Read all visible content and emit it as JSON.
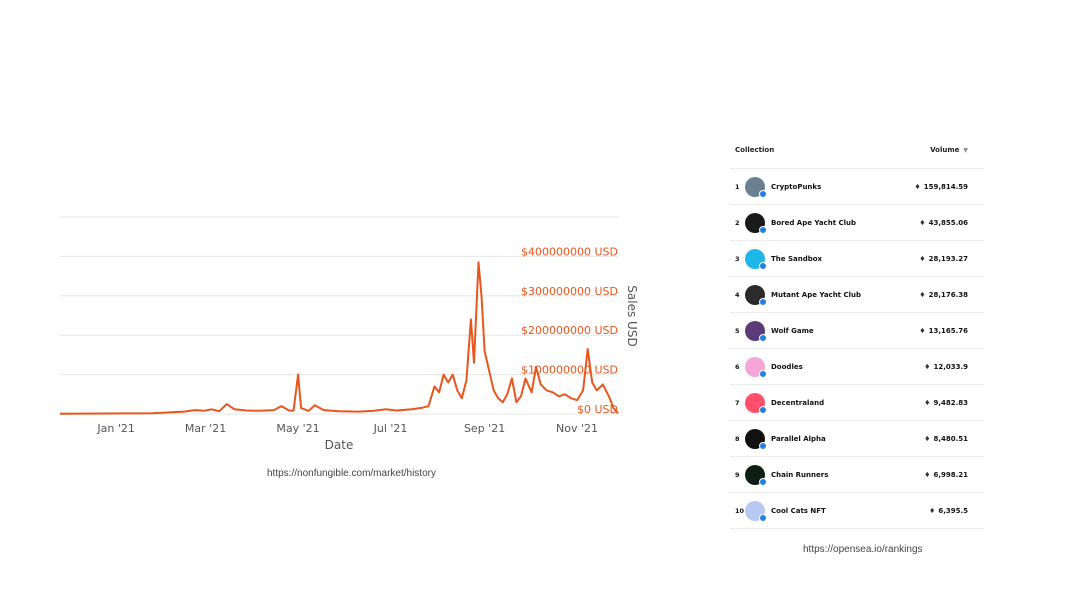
{
  "chart_data": {
    "type": "line",
    "title": "",
    "xlabel": "Date",
    "ylabel": "Sales USD",
    "x_tick_labels": [
      "Jan '21",
      "Mar '21",
      "May '21",
      "Jul '21",
      "Sep '21",
      "Nov '21"
    ],
    "x_tick_dates": [
      "2021-01-01",
      "2021-03-01",
      "2021-05-01",
      "2021-07-01",
      "2021-09-01",
      "2021-11-01"
    ],
    "y_tick_values": [
      0,
      100000000,
      200000000,
      300000000,
      400000000
    ],
    "y_tick_labels": [
      "$0 USD",
      "$100000000 USD",
      "$200000000 USD",
      "$300000000 USD",
      "$400000000 USD"
    ],
    "xlim": [
      "2020-11-25",
      "2021-11-28"
    ],
    "ylim": [
      0,
      500000000
    ],
    "grid": true,
    "line_color": "#e8561e",
    "series": [
      {
        "points": [
          [
            "2020-11-25",
            800000
          ],
          [
            "2020-12-10",
            1000000
          ],
          [
            "2020-12-25",
            1200000
          ],
          [
            "2021-01-10",
            1500000
          ],
          [
            "2021-01-25",
            2000000
          ],
          [
            "2021-02-05",
            4000000
          ],
          [
            "2021-02-15",
            6000000
          ],
          [
            "2021-02-22",
            10000000
          ],
          [
            "2021-02-28",
            8000000
          ],
          [
            "2021-03-05",
            12000000
          ],
          [
            "2021-03-10",
            7000000
          ],
          [
            "2021-03-15",
            25000000
          ],
          [
            "2021-03-20",
            12000000
          ],
          [
            "2021-03-28",
            9000000
          ],
          [
            "2021-04-05",
            8000000
          ],
          [
            "2021-04-15",
            10000000
          ],
          [
            "2021-04-20",
            20000000
          ],
          [
            "2021-04-25",
            9000000
          ],
          [
            "2021-04-28",
            8000000
          ],
          [
            "2021-05-01",
            100000000
          ],
          [
            "2021-05-03",
            15000000
          ],
          [
            "2021-05-08",
            8000000
          ],
          [
            "2021-05-12",
            22000000
          ],
          [
            "2021-05-18",
            10000000
          ],
          [
            "2021-05-28",
            7000000
          ],
          [
            "2021-06-10",
            6000000
          ],
          [
            "2021-06-20",
            8000000
          ],
          [
            "2021-06-28",
            12000000
          ],
          [
            "2021-07-05",
            9000000
          ],
          [
            "2021-07-15",
            12000000
          ],
          [
            "2021-07-22",
            16000000
          ],
          [
            "2021-07-26",
            20000000
          ],
          [
            "2021-07-30",
            70000000
          ],
          [
            "2021-08-02",
            55000000
          ],
          [
            "2021-08-05",
            100000000
          ],
          [
            "2021-08-08",
            80000000
          ],
          [
            "2021-08-11",
            100000000
          ],
          [
            "2021-08-14",
            60000000
          ],
          [
            "2021-08-17",
            40000000
          ],
          [
            "2021-08-20",
            85000000
          ],
          [
            "2021-08-23",
            240000000
          ],
          [
            "2021-08-25",
            130000000
          ],
          [
            "2021-08-28",
            385000000
          ],
          [
            "2021-08-30",
            300000000
          ],
          [
            "2021-09-01",
            160000000
          ],
          [
            "2021-09-04",
            110000000
          ],
          [
            "2021-09-07",
            60000000
          ],
          [
            "2021-09-10",
            40000000
          ],
          [
            "2021-09-13",
            30000000
          ],
          [
            "2021-09-16",
            50000000
          ],
          [
            "2021-09-19",
            90000000
          ],
          [
            "2021-09-22",
            30000000
          ],
          [
            "2021-09-25",
            45000000
          ],
          [
            "2021-09-28",
            90000000
          ],
          [
            "2021-10-02",
            55000000
          ],
          [
            "2021-10-05",
            120000000
          ],
          [
            "2021-10-08",
            75000000
          ],
          [
            "2021-10-12",
            60000000
          ],
          [
            "2021-10-16",
            55000000
          ],
          [
            "2021-10-20",
            45000000
          ],
          [
            "2021-10-24",
            50000000
          ],
          [
            "2021-10-28",
            40000000
          ],
          [
            "2021-11-01",
            35000000
          ],
          [
            "2021-11-05",
            60000000
          ],
          [
            "2021-11-08",
            165000000
          ],
          [
            "2021-11-11",
            80000000
          ],
          [
            "2021-11-14",
            60000000
          ],
          [
            "2021-11-18",
            75000000
          ],
          [
            "2021-11-22",
            45000000
          ],
          [
            "2021-11-25",
            15000000
          ],
          [
            "2021-11-28",
            2000000
          ]
        ]
      }
    ]
  },
  "sources": {
    "chart_source": "https://nonfungible.com/market/history",
    "table_source": "https://opensea.io/rankings"
  },
  "rankings": {
    "header": {
      "collection": "Collection",
      "volume": "Volume"
    },
    "items": [
      {
        "rank": "1",
        "name": "CryptoPunks",
        "volume": "159,814.59",
        "avatar_color": "#6a7f8f"
      },
      {
        "rank": "2",
        "name": "Bored Ape Yacht Club",
        "volume": "43,855.06",
        "avatar_color": "#1a1a1a"
      },
      {
        "rank": "3",
        "name": "The Sandbox",
        "volume": "28,193.27",
        "avatar_color": "#1fb6e8"
      },
      {
        "rank": "4",
        "name": "Mutant Ape Yacht Club",
        "volume": "28,176.38",
        "avatar_color": "#2b2b2b"
      },
      {
        "rank": "5",
        "name": "Wolf Game",
        "volume": "13,165.76",
        "avatar_color": "#5b3a7a"
      },
      {
        "rank": "6",
        "name": "Doodles",
        "volume": "12,033.9",
        "avatar_color": "#f4a6d8"
      },
      {
        "rank": "7",
        "name": "Decentraland",
        "volume": "9,482.83",
        "avatar_color": "#ff4f6a"
      },
      {
        "rank": "8",
        "name": "Parallel Alpha",
        "volume": "8,480.51",
        "avatar_color": "#111111"
      },
      {
        "rank": "9",
        "name": "Chain Runners",
        "volume": "6,998.21",
        "avatar_color": "#0d1f14"
      },
      {
        "rank": "10",
        "name": "Cool Cats NFT",
        "volume": "6,395.5",
        "avatar_color": "#b7c8f2"
      }
    ]
  }
}
